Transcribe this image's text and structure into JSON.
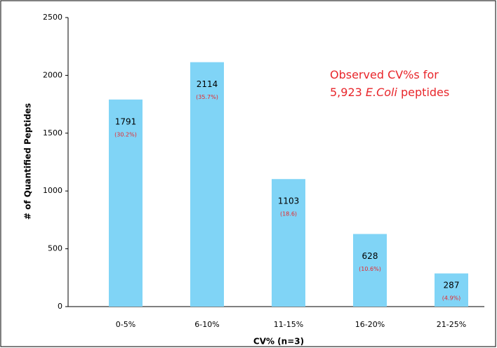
{
  "chart_data": {
    "type": "bar",
    "categories": [
      "0-5%",
      "6-10%",
      "11-15%",
      "16-20%",
      "21-25%"
    ],
    "values": [
      1791,
      2114,
      1103,
      628,
      287
    ],
    "share_labels": [
      "(30.2%)",
      "(35.7%)",
      "(18.6)",
      "(10.6%)",
      "(4.9%)"
    ],
    "color": "#80d4f6",
    "ylim": [
      0,
      2500
    ],
    "yticks": [
      0,
      500,
      1000,
      1500,
      2000,
      2500
    ],
    "xlabel": "CV% (n=3)",
    "ylabel": "# of Quantified Peptides",
    "annotation": {
      "line1": "Observed CV%s for",
      "line2_start": "5,923 ",
      "line2_italic": "E.Coli",
      "line2_end": " peptides"
    }
  }
}
